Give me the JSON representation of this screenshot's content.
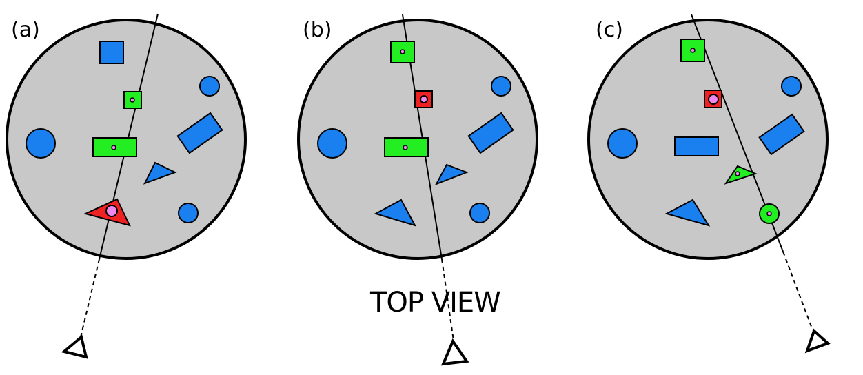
{
  "caption": "TOP VIEW",
  "colors": {
    "table": "#c8c8c8",
    "blue_object": "#1a80f0",
    "green_object": "#22ee22",
    "red_object": "#ee2222",
    "target_marker": "#ee88ee",
    "outline": "#000000"
  },
  "panels": [
    {
      "label": "(a)",
      "objects": [
        {
          "shape": "square",
          "color": "blue"
        },
        {
          "shape": "square",
          "color": "green",
          "marked": true
        },
        {
          "shape": "rectangle",
          "color": "green",
          "marked": true
        },
        {
          "shape": "triangle",
          "color": "red",
          "target": true
        },
        {
          "shape": "circle",
          "color": "blue"
        },
        {
          "shape": "circle",
          "color": "blue"
        },
        {
          "shape": "rectangle",
          "color": "blue"
        },
        {
          "shape": "triangle",
          "color": "blue"
        },
        {
          "shape": "circle",
          "color": "blue"
        }
      ]
    },
    {
      "label": "(b)",
      "objects": [
        {
          "shape": "square",
          "color": "green",
          "marked": true
        },
        {
          "shape": "square",
          "color": "red",
          "target": true
        },
        {
          "shape": "rectangle",
          "color": "green",
          "marked": true
        },
        {
          "shape": "circle",
          "color": "blue"
        },
        {
          "shape": "circle",
          "color": "blue"
        },
        {
          "shape": "rectangle",
          "color": "blue"
        },
        {
          "shape": "triangle",
          "color": "blue"
        },
        {
          "shape": "triangle",
          "color": "blue"
        },
        {
          "shape": "circle",
          "color": "blue"
        }
      ]
    },
    {
      "label": "(c)",
      "objects": [
        {
          "shape": "square",
          "color": "green",
          "marked": true
        },
        {
          "shape": "square",
          "color": "red",
          "target": true
        },
        {
          "shape": "rectangle",
          "color": "blue"
        },
        {
          "shape": "triangle",
          "color": "green",
          "marked": true
        },
        {
          "shape": "circle",
          "color": "green",
          "marked": true
        },
        {
          "shape": "circle",
          "color": "blue"
        },
        {
          "shape": "circle",
          "color": "blue"
        },
        {
          "shape": "rectangle",
          "color": "blue"
        },
        {
          "shape": "triangle",
          "color": "blue"
        }
      ]
    }
  ]
}
